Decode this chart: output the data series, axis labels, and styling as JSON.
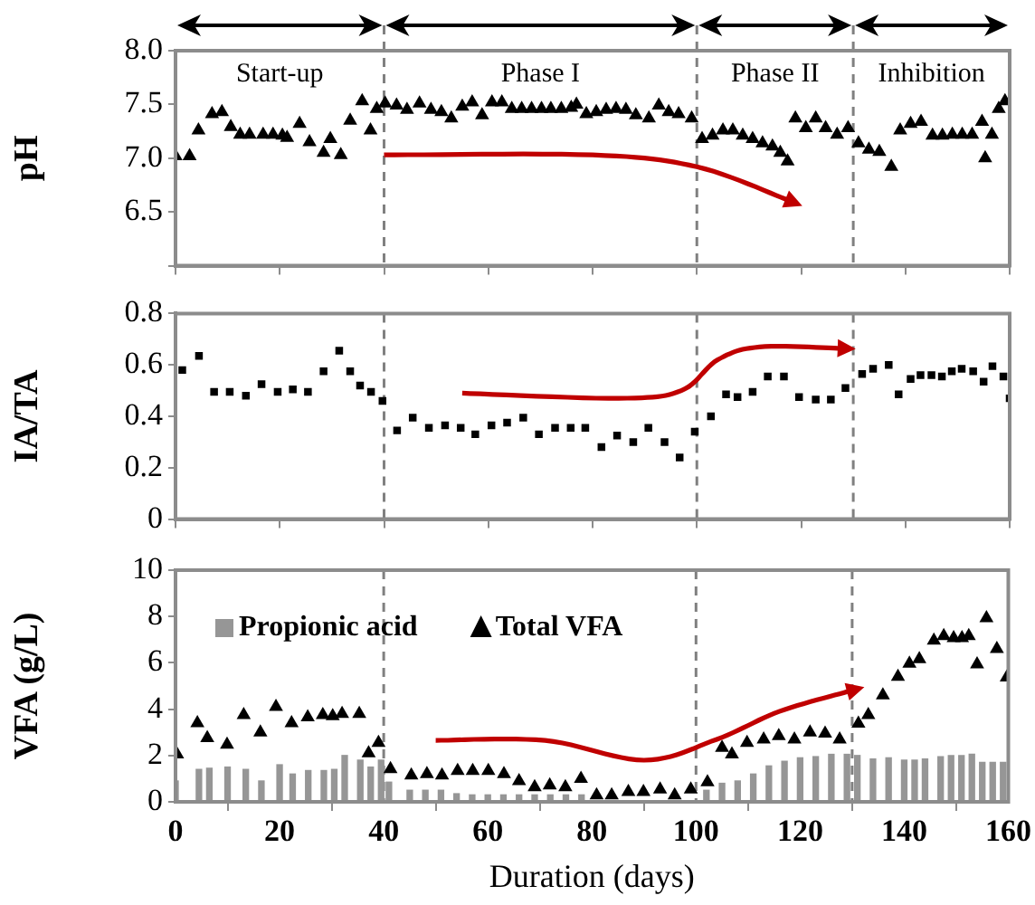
{
  "chart_data": [
    {
      "type": "scatter",
      "ylabel": "pH",
      "marker": "triangle",
      "color": "#000000",
      "x": [
        0,
        2.7,
        4.4,
        7,
        8.9,
        10.6,
        12.4,
        14.2,
        16.8,
        18.7,
        20.5,
        21.4,
        23.8,
        25.7,
        28.4,
        29.7,
        31.7,
        33.5,
        35.8,
        37.4,
        38.6,
        40.2,
        42.4,
        44.4,
        46.8,
        49,
        51,
        52.9,
        55,
        56.9,
        58.8,
        60.7,
        62.6,
        64.5,
        66.4,
        68.3,
        70.2,
        72,
        74,
        75.9,
        76.9,
        78.8,
        80.7,
        82.6,
        84.5,
        86.4,
        88.3,
        90.8,
        92.7,
        94.6,
        96.5,
        99,
        101,
        103,
        105,
        106.9,
        108.8,
        110.7,
        112.6,
        114.5,
        116,
        117.4,
        118.9,
        120.9,
        122.8,
        124.7,
        126.9,
        129,
        131,
        133,
        135,
        137.3,
        139,
        141,
        143,
        145.2,
        147.1,
        149,
        150.9,
        152.8,
        154.7,
        155.3,
        156.6,
        157.9,
        159.1
      ],
      "values": [
        7.02,
        7.02,
        7.26,
        7.41,
        7.43,
        7.29,
        7.22,
        7.22,
        7.22,
        7.22,
        7.21,
        7.19,
        7.32,
        7.15,
        7.05,
        7.18,
        7.03,
        7.35,
        7.53,
        7.26,
        7.46,
        7.51,
        7.49,
        7.45,
        7.51,
        7.45,
        7.43,
        7.37,
        7.48,
        7.52,
        7.4,
        7.52,
        7.52,
        7.46,
        7.46,
        7.46,
        7.46,
        7.46,
        7.46,
        7.47,
        7.5,
        7.41,
        7.43,
        7.45,
        7.46,
        7.45,
        7.4,
        7.37,
        7.49,
        7.43,
        7.41,
        7.37,
        7.18,
        7.21,
        7.26,
        7.26,
        7.21,
        7.18,
        7.14,
        7.11,
        7.05,
        6.97,
        7.37,
        7.28,
        7.37,
        7.28,
        7.22,
        7.28,
        7.14,
        7.08,
        7.06,
        6.92,
        7.26,
        7.32,
        7.34,
        7.21,
        7.21,
        7.22,
        7.22,
        7.22,
        7.34,
        7.0,
        7.22,
        7.46,
        7.53
      ],
      "xlim": [
        0,
        160
      ],
      "xticks": [
        0,
        20,
        40,
        60,
        80,
        100,
        120,
        140,
        160
      ],
      "ylim": [
        6,
        8
      ],
      "yticks": [
        {
          "value": 6,
          "label": null
        },
        {
          "value": 6.5,
          "label": "6.5"
        },
        {
          "value": 7,
          "label": "7.0"
        },
        {
          "value": 7.5,
          "label": "7.5"
        },
        {
          "value": 8,
          "label": "8.0"
        }
      ],
      "tick_labels": "y",
      "grid": false,
      "legend": false,
      "ref_lines": [
        {
          "axis": "x",
          "value": 40,
          "color": "#808080",
          "line_style": "dashed"
        },
        {
          "axis": "x",
          "value": 100,
          "color": "#808080",
          "line_style": "dashed"
        },
        {
          "axis": "x",
          "value": 130,
          "color": "#808080",
          "line_style": "dashed"
        }
      ],
      "annotations": [
        "Start-up",
        "Phase I",
        "Phase II",
        "Inhibition"
      ]
    },
    {
      "type": "scatter",
      "ylabel": "IA/TA",
      "marker": "square",
      "color": "#000000",
      "x": [
        1.3,
        4.5,
        7.4,
        10.4,
        13.5,
        16.5,
        19.6,
        22.5,
        25.4,
        28.4,
        31.4,
        33.5,
        35.4,
        37.5,
        39.7,
        42.5,
        45.5,
        48.6,
        51.7,
        54.7,
        57.5,
        60.6,
        63.6,
        66.7,
        69.7,
        72.8,
        75.8,
        78.6,
        81.7,
        84.7,
        87.8,
        90.7,
        93.8,
        96.7,
        99.6,
        102.7,
        105.6,
        107.8,
        110.7,
        113.6,
        116.7,
        119.6,
        122.8,
        125.7,
        128.5,
        131.7,
        133.8,
        136.8,
        138.7,
        141,
        142.9,
        145,
        147,
        148.9,
        150.8,
        153,
        155,
        156.7,
        158.8,
        160
      ],
      "values": [
        0.58,
        0.635,
        0.495,
        0.495,
        0.48,
        0.525,
        0.495,
        0.505,
        0.495,
        0.575,
        0.655,
        0.575,
        0.52,
        0.495,
        0.46,
        0.345,
        0.395,
        0.355,
        0.365,
        0.355,
        0.33,
        0.365,
        0.375,
        0.395,
        0.33,
        0.355,
        0.355,
        0.355,
        0.28,
        0.325,
        0.3,
        0.355,
        0.3,
        0.24,
        0.34,
        0.4,
        0.485,
        0.475,
        0.495,
        0.555,
        0.555,
        0.475,
        0.465,
        0.465,
        0.51,
        0.565,
        0.585,
        0.6,
        0.485,
        0.545,
        0.56,
        0.56,
        0.555,
        0.575,
        0.585,
        0.575,
        0.535,
        0.595,
        0.555,
        0.47
      ],
      "xlim": [
        0,
        160
      ],
      "xticks": [
        0,
        20,
        40,
        60,
        80,
        100,
        120,
        140,
        160
      ],
      "ylim": [
        0,
        0.8
      ],
      "yticks": [
        0,
        0.2,
        0.4,
        0.6,
        0.8
      ],
      "tick_labels": "y",
      "grid": false,
      "legend": false,
      "ref_lines": [
        {
          "axis": "x",
          "value": 40,
          "color": "#808080",
          "line_style": "dashed"
        },
        {
          "axis": "x",
          "value": 100,
          "color": "#808080",
          "line_style": "dashed"
        },
        {
          "axis": "x",
          "value": 130,
          "color": "#808080",
          "line_style": "dashed"
        }
      ]
    },
    {
      "type": "scatter",
      "ylabel": "VFA (g/L)",
      "xlabel": "Duration (days)",
      "series": [
        {
          "name": "Propionic acid",
          "type": "bar",
          "color": "#969696",
          "x": [
            0,
            4.5,
            6.5,
            10,
            13.5,
            16.5,
            20,
            22.5,
            25.5,
            28.5,
            30.5,
            32.5,
            35.5,
            37.5,
            39.5,
            41,
            45,
            48,
            51,
            54,
            57,
            60,
            63,
            66,
            69,
            72,
            75,
            78,
            102,
            105,
            108,
            111,
            114,
            117,
            120,
            123,
            126,
            129,
            131,
            134,
            137,
            140,
            142,
            144,
            147,
            149,
            151,
            153,
            155,
            157,
            159
          ],
          "values": [
            0.9,
            1.4,
            1.45,
            1.5,
            1.4,
            0.9,
            1.6,
            1.2,
            1.35,
            1.35,
            1.4,
            2.0,
            1.8,
            1.5,
            1.8,
            0.85,
            0.5,
            0.5,
            0.5,
            0.35,
            0.3,
            0.3,
            0.3,
            0.3,
            0.3,
            0.3,
            0.3,
            0.3,
            0.5,
            0.8,
            0.9,
            1.2,
            1.55,
            1.75,
            1.9,
            1.95,
            2.05,
            2.05,
            2.0,
            1.85,
            1.9,
            1.8,
            1.8,
            1.85,
            1.95,
            2.0,
            2.0,
            2.05,
            1.7,
            1.7,
            1.7
          ]
        },
        {
          "name": "Total VFA",
          "type": "scatter",
          "marker": "triangle",
          "color": "#000000",
          "x": [
            0.3,
            4.2,
            6.1,
            9.9,
            13.1,
            16.3,
            19.3,
            22.3,
            25.4,
            28.3,
            30.2,
            32,
            35.3,
            37.1,
            39,
            41.3,
            45.3,
            48.3,
            51.2,
            54.2,
            57.1,
            60.1,
            63.1,
            66,
            69,
            71.9,
            74.9,
            77.9,
            80.9,
            83.8,
            87,
            89.9,
            93.1,
            95.9,
            99,
            102.2,
            105,
            106.9,
            109.8,
            113,
            115.9,
            118.9,
            121.9,
            124.8,
            127.6,
            131.2,
            133.1,
            135.9,
            138.8,
            141,
            142.9,
            145.7,
            147.6,
            149.5,
            151.1,
            152.4,
            154,
            155.8,
            157.8,
            159.7
          ],
          "values": [
            2.05,
            3.4,
            2.75,
            2.47,
            3.75,
            3.0,
            4.1,
            3.4,
            3.65,
            3.75,
            3.7,
            3.8,
            3.8,
            2.1,
            2.55,
            1.42,
            1.14,
            1.2,
            1.14,
            1.34,
            1.34,
            1.34,
            1.2,
            0.9,
            0.63,
            0.71,
            0.63,
            1.0,
            0.28,
            0.28,
            0.43,
            0.43,
            0.54,
            0.28,
            0.54,
            0.85,
            2.33,
            2.05,
            2.55,
            2.7,
            2.84,
            2.7,
            3.0,
            2.95,
            2.7,
            3.38,
            3.75,
            4.6,
            5.4,
            5.97,
            6.16,
            6.96,
            7.16,
            7.07,
            7.07,
            7.16,
            5.94,
            7.93,
            6.6,
            5.37
          ]
        }
      ],
      "xlim": [
        0,
        160
      ],
      "xticks": [
        0,
        20,
        40,
        60,
        80,
        100,
        120,
        140,
        160
      ],
      "ylim": [
        0,
        10
      ],
      "yticks": [
        0,
        2,
        4,
        6,
        8,
        10
      ],
      "grid": false,
      "legend": "top left",
      "ref_lines": [
        {
          "axis": "x",
          "value": 40,
          "color": "#808080",
          "line_style": "dashed"
        },
        {
          "axis": "x",
          "value": 100,
          "color": "#808080",
          "line_style": "dashed"
        },
        {
          "axis": "x",
          "value": 130,
          "color": "#808080",
          "line_style": "dashed"
        }
      ]
    }
  ]
}
